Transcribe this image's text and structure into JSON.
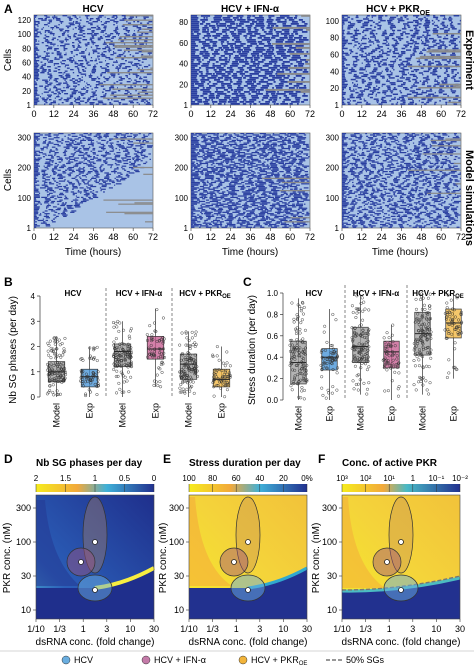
{
  "panel_letters": {
    "a": "A",
    "b": "B",
    "c": "C",
    "d": "D",
    "e": "E",
    "f": "F"
  },
  "row_labels": {
    "experiment": "Experiment",
    "model": "Model simulations"
  },
  "conditions": [
    "HCV",
    "HCV + IFN-α",
    "HCV + PKR"
  ],
  "pkr_subscript": "OE",
  "axes": {
    "cells": "Cells",
    "time": "Time (hours)",
    "time_ticks": [
      "0",
      "12",
      "24",
      "36",
      "48",
      "60",
      "72"
    ],
    "exp_yticks": [
      [
        "1",
        "20",
        "40",
        "60",
        "80",
        "100",
        "120"
      ],
      [
        "1",
        "20",
        "40",
        "60",
        "80"
      ],
      [
        "1",
        "20",
        "40",
        "60",
        "80",
        "100"
      ]
    ],
    "model_yticks": [
      "1",
      "100",
      "200",
      "300"
    ],
    "nb_sg": "Nb SG phases (per day)",
    "stress": "Stress duration (per day)",
    "box_x": [
      "Model",
      "Exp",
      "Model",
      "Exp",
      "Model",
      "Exp"
    ],
    "pkr_conc": "PKR conc. (nM)",
    "dsrna": "dsRNA conc. (fold change)",
    "dsrna_ticks": [
      "1/10",
      "1/3",
      "1",
      "3",
      "10",
      "30"
    ],
    "pkr_ticks": [
      "10",
      "30",
      "100",
      "300"
    ]
  },
  "heatmaps": {
    "d": {
      "title": "Nb SG phases per day",
      "ticks": [
        "2",
        "1.5",
        "1",
        "0.5",
        "0"
      ]
    },
    "e": {
      "title": "Stress duration per day",
      "ticks": [
        "100",
        "80",
        "60",
        "40",
        "20",
        "0%"
      ]
    },
    "f": {
      "title": "Conc. of active PKR",
      "ticks": [
        "10³",
        "10²",
        "10¹",
        "1",
        "10⁻¹",
        "10⁻²"
      ]
    }
  },
  "legend": {
    "hcv": "HCV",
    "ifn": "HCV + IFN-α",
    "pkr": "HCV + PKR",
    "pkr_sub": "OE",
    "sgs": "50% SGs"
  },
  "colors": {
    "sg_dark": "#2a3fa0",
    "bg_light": "#a9c3e6",
    "grey": "#8a8a8a",
    "model": "#9a9a9a",
    "hcv": "#3d8fd6",
    "ifn": "#c4568c",
    "pkr": "#f2b43a"
  },
  "chart_data": [
    {
      "type": "box",
      "title": "Nb SG phases per day",
      "ylabel": "Nb SG phases (per day)",
      "ylim": [
        0,
        4
      ],
      "categories": [
        "HCV Model",
        "HCV Exp",
        "HCV + IFN-α Model",
        "HCV + IFN-α Exp",
        "HCV + PKR Model",
        "HCV + PKR Exp"
      ],
      "series": [
        {
          "values": [
            [
              0,
              0.6,
              1,
              1.4,
              2.4
            ],
            [
              0,
              0.4,
              0.8,
              1.1,
              2
            ],
            [
              0,
              1.2,
              1.8,
              2.1,
              3
            ],
            [
              0.4,
              1.5,
              1.9,
              2.4,
              3.5
            ],
            [
              0,
              0.7,
              1.3,
              1.7,
              2.6
            ],
            [
              0,
              0.4,
              0.7,
              1.1,
              2
            ]
          ]
        }
      ]
    },
    {
      "type": "box",
      "ylabel": "Stress duration (per day)",
      "ylim": [
        0,
        1
      ],
      "categories": [
        "HCV Model",
        "HCV Exp",
        "HCV + IFN-α Model",
        "HCV + IFN-α Exp",
        "HCV + PKR Model",
        "HCV + PKR Exp"
      ],
      "series": [
        {
          "values": [
            [
              0,
              0.15,
              0.35,
              0.55,
              0.95
            ],
            [
              0,
              0.28,
              0.4,
              0.48,
              0.85
            ],
            [
              0.05,
              0.35,
              0.5,
              0.68,
              0.98
            ],
            [
              0,
              0.3,
              0.45,
              0.55,
              0.7
            ],
            [
              0.05,
              0.42,
              0.62,
              0.82,
              1
            ],
            [
              0.2,
              0.58,
              0.72,
              0.85,
              1
            ]
          ]
        }
      ]
    }
  ]
}
